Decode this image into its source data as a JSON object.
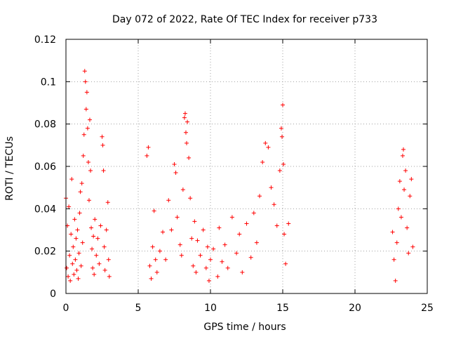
{
  "chart_data": {
    "type": "scatter",
    "title": "Day 072 of 2022, Rate Of TEC Index for receiver p733",
    "xlabel": "GPS time / hours",
    "ylabel": "ROTI / TECUs",
    "xlim": [
      0,
      25
    ],
    "ylim": [
      0,
      0.12
    ],
    "xticks": [
      0,
      5,
      10,
      15,
      20,
      25
    ],
    "yticks": [
      0,
      0.02,
      0.04,
      0.06,
      0.08,
      0.1,
      0.12
    ],
    "xtick_labels": [
      "0",
      "5",
      "10",
      "15",
      "20",
      "25"
    ],
    "ytick_labels": [
      "0",
      "0.02",
      "0.04",
      "0.06",
      "0.08",
      "0.1",
      "0.12"
    ],
    "grid": true,
    "marker": "+",
    "color": "#ff0000",
    "series": [
      {
        "points": [
          [
            0.0,
            0.045
          ],
          [
            0.05,
            0.012
          ],
          [
            0.1,
            0.032
          ],
          [
            0.15,
            0.008
          ],
          [
            0.2,
            0.041
          ],
          [
            0.25,
            0.018
          ],
          [
            0.3,
            0.006
          ],
          [
            0.35,
            0.028
          ],
          [
            0.4,
            0.054
          ],
          [
            0.45,
            0.014
          ],
          [
            0.5,
            0.022
          ],
          [
            0.55,
            0.009
          ],
          [
            0.6,
            0.035
          ],
          [
            0.65,
            0.016
          ],
          [
            0.7,
            0.026
          ],
          [
            0.75,
            0.011
          ],
          [
            0.8,
            0.03
          ],
          [
            0.85,
            0.007
          ],
          [
            0.9,
            0.019
          ],
          [
            0.95,
            0.038
          ],
          [
            1.0,
            0.048
          ],
          [
            1.05,
            0.013
          ],
          [
            1.1,
            0.052
          ],
          [
            1.15,
            0.024
          ],
          [
            1.2,
            0.065
          ],
          [
            1.25,
            0.075
          ],
          [
            1.3,
            0.105
          ],
          [
            1.35,
            0.1
          ],
          [
            1.4,
            0.087
          ],
          [
            1.45,
            0.095
          ],
          [
            1.5,
            0.078
          ],
          [
            1.55,
            0.062
          ],
          [
            1.6,
            0.044
          ],
          [
            1.65,
            0.082
          ],
          [
            1.7,
            0.058
          ],
          [
            1.75,
            0.031
          ],
          [
            1.8,
            0.021
          ],
          [
            1.85,
            0.012
          ],
          [
            1.9,
            0.027
          ],
          [
            1.95,
            0.009
          ],
          [
            2.0,
            0.035
          ],
          [
            2.1,
            0.018
          ],
          [
            2.2,
            0.026
          ],
          [
            2.3,
            0.014
          ],
          [
            2.4,
            0.032
          ],
          [
            2.5,
            0.074
          ],
          [
            2.55,
            0.07
          ],
          [
            2.6,
            0.058
          ],
          [
            2.65,
            0.022
          ],
          [
            2.7,
            0.011
          ],
          [
            2.8,
            0.03
          ],
          [
            2.9,
            0.043
          ],
          [
            2.95,
            0.016
          ],
          [
            3.0,
            0.008
          ],
          [
            5.6,
            0.065
          ],
          [
            5.7,
            0.069
          ],
          [
            5.8,
            0.013
          ],
          [
            5.9,
            0.007
          ],
          [
            6.0,
            0.022
          ],
          [
            6.1,
            0.039
          ],
          [
            6.2,
            0.016
          ],
          [
            6.3,
            0.01
          ],
          [
            6.5,
            0.02
          ],
          [
            6.7,
            0.029
          ],
          [
            6.9,
            0.016
          ],
          [
            7.1,
            0.044
          ],
          [
            7.3,
            0.03
          ],
          [
            7.5,
            0.061
          ],
          [
            7.6,
            0.057
          ],
          [
            7.7,
            0.036
          ],
          [
            7.9,
            0.023
          ],
          [
            8.0,
            0.018
          ],
          [
            8.1,
            0.049
          ],
          [
            8.2,
            0.083
          ],
          [
            8.25,
            0.085
          ],
          [
            8.3,
            0.076
          ],
          [
            8.35,
            0.071
          ],
          [
            8.4,
            0.081
          ],
          [
            8.5,
            0.064
          ],
          [
            8.6,
            0.045
          ],
          [
            8.7,
            0.026
          ],
          [
            8.8,
            0.013
          ],
          [
            8.9,
            0.034
          ],
          [
            9.0,
            0.01
          ],
          [
            9.1,
            0.025
          ],
          [
            9.3,
            0.018
          ],
          [
            9.5,
            0.03
          ],
          [
            9.7,
            0.012
          ],
          [
            9.8,
            0.022
          ],
          [
            9.9,
            0.006
          ],
          [
            10.0,
            0.016
          ],
          [
            10.2,
            0.021
          ],
          [
            10.5,
            0.008
          ],
          [
            10.6,
            0.031
          ],
          [
            10.8,
            0.015
          ],
          [
            11.0,
            0.023
          ],
          [
            11.2,
            0.012
          ],
          [
            11.5,
            0.036
          ],
          [
            11.8,
            0.019
          ],
          [
            12.0,
            0.028
          ],
          [
            12.2,
            0.01
          ],
          [
            12.5,
            0.033
          ],
          [
            12.8,
            0.017
          ],
          [
            13.0,
            0.038
          ],
          [
            13.2,
            0.024
          ],
          [
            13.4,
            0.046
          ],
          [
            13.6,
            0.062
          ],
          [
            13.8,
            0.071
          ],
          [
            14.0,
            0.069
          ],
          [
            14.2,
            0.05
          ],
          [
            14.4,
            0.042
          ],
          [
            14.6,
            0.032
          ],
          [
            14.8,
            0.058
          ],
          [
            14.9,
            0.078
          ],
          [
            14.95,
            0.074
          ],
          [
            15.0,
            0.089
          ],
          [
            15.05,
            0.061
          ],
          [
            15.1,
            0.028
          ],
          [
            15.2,
            0.014
          ],
          [
            15.4,
            0.033
          ],
          [
            22.6,
            0.029
          ],
          [
            22.7,
            0.016
          ],
          [
            22.8,
            0.006
          ],
          [
            22.9,
            0.024
          ],
          [
            23.0,
            0.04
          ],
          [
            23.1,
            0.053
          ],
          [
            23.2,
            0.036
          ],
          [
            23.3,
            0.065
          ],
          [
            23.35,
            0.068
          ],
          [
            23.4,
            0.049
          ],
          [
            23.5,
            0.058
          ],
          [
            23.6,
            0.031
          ],
          [
            23.7,
            0.019
          ],
          [
            23.8,
            0.046
          ],
          [
            23.9,
            0.054
          ],
          [
            24.0,
            0.022
          ]
        ]
      }
    ]
  }
}
